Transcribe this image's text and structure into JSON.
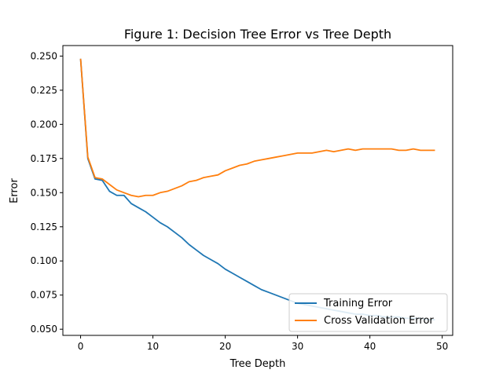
{
  "chart_data": {
    "type": "line",
    "title": "Figure 1: Decision Tree Error vs Tree Depth",
    "xlabel": "Tree Depth",
    "ylabel": "Error",
    "xlim": [
      -2.45,
      51.45
    ],
    "ylim": [
      0.0455,
      0.2577
    ],
    "xticks": [
      0,
      10,
      20,
      30,
      40,
      50
    ],
    "yticks": [
      0.05,
      0.075,
      0.1,
      0.125,
      0.15,
      0.175,
      0.2,
      0.225,
      0.25
    ],
    "ytick_labels": [
      "0.050",
      "0.075",
      "0.100",
      "0.125",
      "0.150",
      "0.175",
      "0.200",
      "0.225",
      "0.250"
    ],
    "grid": false,
    "legend_position": "lower right",
    "x": [
      0,
      1,
      2,
      3,
      4,
      5,
      6,
      7,
      8,
      9,
      10,
      11,
      12,
      13,
      14,
      15,
      16,
      17,
      18,
      19,
      20,
      21,
      22,
      23,
      24,
      25,
      26,
      27,
      28,
      29,
      30,
      31,
      32,
      33,
      34,
      35,
      36,
      37,
      38,
      39,
      40,
      41,
      42,
      43,
      44,
      45,
      46,
      47,
      48,
      49
    ],
    "series": [
      {
        "name": "Training Error",
        "color": "#1f77b4",
        "values": [
          0.248,
          0.175,
          0.16,
          0.159,
          0.151,
          0.148,
          0.148,
          0.142,
          0.139,
          0.136,
          0.132,
          0.128,
          0.125,
          0.121,
          0.117,
          0.112,
          0.108,
          0.104,
          0.101,
          0.098,
          0.094,
          0.091,
          0.088,
          0.085,
          0.082,
          0.079,
          0.077,
          0.075,
          0.073,
          0.071,
          0.069,
          0.068,
          0.067,
          0.066,
          0.065,
          0.064,
          0.063,
          0.062,
          0.061,
          0.061,
          0.06,
          0.06,
          0.059,
          0.059,
          0.059,
          0.058,
          0.058,
          0.058,
          0.057,
          0.057
        ]
      },
      {
        "name": "Cross Validation Error",
        "color": "#ff7f0e",
        "values": [
          0.248,
          0.176,
          0.161,
          0.16,
          0.156,
          0.152,
          0.15,
          0.148,
          0.147,
          0.148,
          0.148,
          0.15,
          0.151,
          0.153,
          0.155,
          0.158,
          0.159,
          0.161,
          0.162,
          0.163,
          0.166,
          0.168,
          0.17,
          0.171,
          0.173,
          0.174,
          0.175,
          0.176,
          0.177,
          0.178,
          0.179,
          0.179,
          0.179,
          0.18,
          0.181,
          0.18,
          0.181,
          0.182,
          0.181,
          0.182,
          0.182,
          0.182,
          0.182,
          0.182,
          0.181,
          0.181,
          0.182,
          0.181,
          0.181,
          0.181
        ]
      }
    ]
  }
}
